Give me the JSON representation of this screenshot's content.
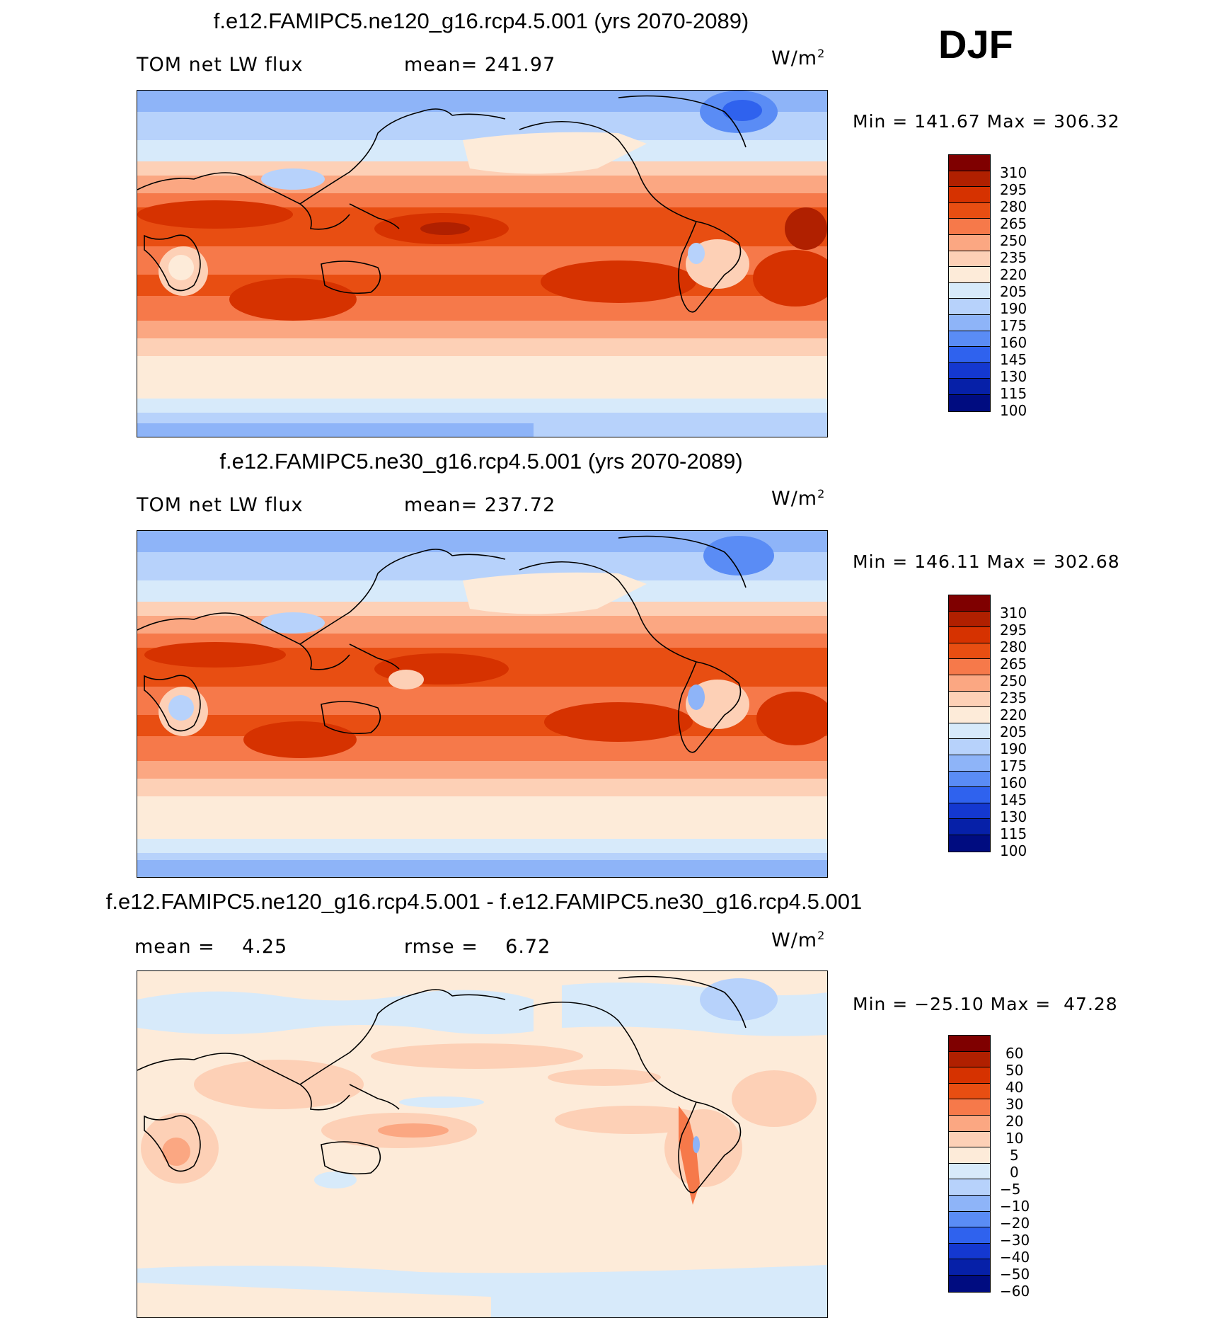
{
  "season": "DJF",
  "units_label": "W/m",
  "units_sup": "2",
  "panels": [
    {
      "title": "f.e12.FAMIPC5.ne120_g16.rcp4.5.001 (yrs 2070-2089)",
      "left_label": "TOM net LW flux",
      "stat_label": "mean= 241.97",
      "minmax": "Min = 141.67 Max = 306.32",
      "ticks": [
        "310",
        "295",
        "280",
        "265",
        "250",
        "235",
        "220",
        "205",
        "190",
        "175",
        "160",
        "145",
        "130",
        "115",
        "100"
      ]
    },
    {
      "title": "f.e12.FAMIPC5.ne30_g16.rcp4.5.001 (yrs 2070-2089)",
      "left_label": "TOM net LW flux",
      "stat_label": "mean= 237.72",
      "minmax": "Min = 146.11 Max = 302.68",
      "ticks": [
        "310",
        "295",
        "280",
        "265",
        "250",
        "235",
        "220",
        "205",
        "190",
        "175",
        "160",
        "145",
        "130",
        "115",
        "100"
      ]
    },
    {
      "title": "f.e12.FAMIPC5.ne120_g16.rcp4.5.001 - f.e12.FAMIPC5.ne30_g16.rcp4.5.001",
      "left_label": "mean =    4.25",
      "stat_label": "rmse =    6.72",
      "minmax": "Min = −25.10 Max =  47.28",
      "ticks": [
        "60",
        "50",
        "40",
        "30",
        "20",
        "10",
        "5",
        "0",
        "−5",
        "−10",
        "−20",
        "−30",
        "−40",
        "−50",
        "−60"
      ]
    }
  ],
  "colorbar_colors": [
    "#7f0000",
    "#b02000",
    "#d63200",
    "#e84e12",
    "#f6794a",
    "#fba782",
    "#fdd0b6",
    "#fdebd9",
    "#d7eafa",
    "#b7d2fb",
    "#8eb4f8",
    "#5a8cf5",
    "#2f62ee",
    "#1438d0",
    "#0620a8",
    "#000c80"
  ]
}
